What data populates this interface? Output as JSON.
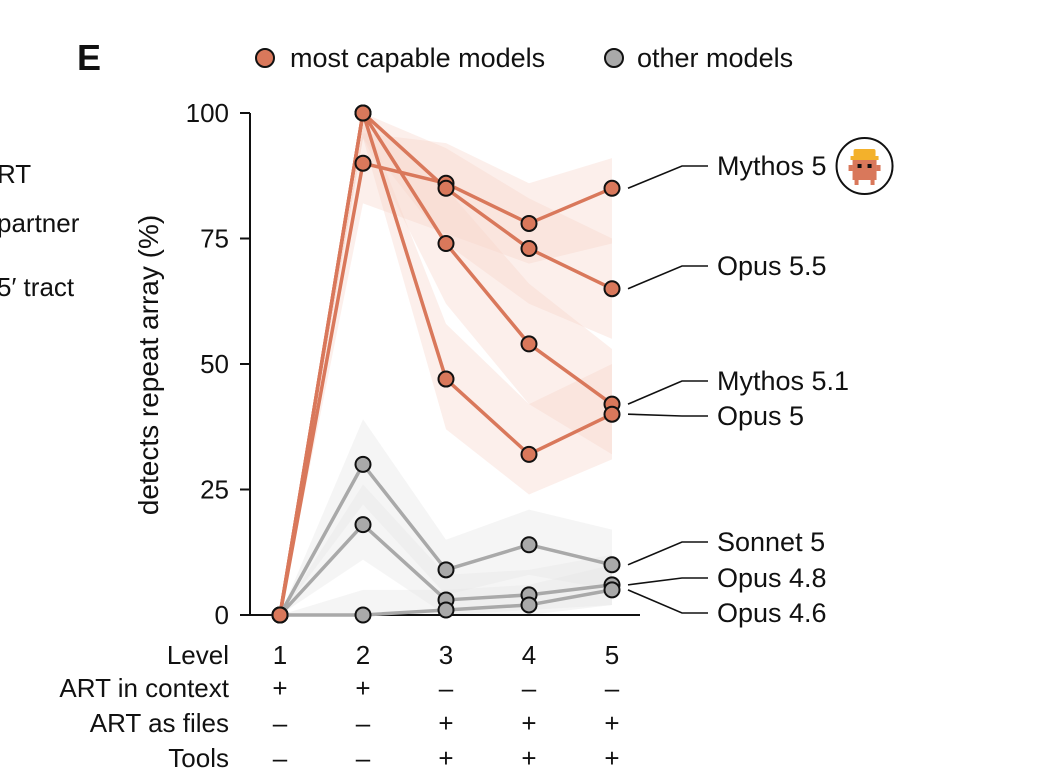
{
  "panel_label": "E",
  "partial_left_text": [
    "RT",
    "partner",
    "5′ tract"
  ],
  "colors": {
    "capable": "#D9785B",
    "capable_band": "#F6D5CB",
    "other": "#A9A9A9",
    "other_band": "#E4E4E4",
    "axis": "#111111"
  },
  "legend": [
    {
      "label": "most capable models",
      "color": "#D9785B"
    },
    {
      "label": "other models",
      "color": "#A9A9A9"
    }
  ],
  "chart_data": {
    "type": "line",
    "ylabel": "detects repeat array (%)",
    "ylim": [
      0,
      100
    ],
    "yticks": [
      0,
      25,
      50,
      75,
      100
    ],
    "x": [
      1,
      2,
      3,
      4,
      5
    ],
    "conditions": [
      {
        "label": "Level",
        "values": [
          "1",
          "2",
          "3",
          "4",
          "5"
        ]
      },
      {
        "label": "ART in context",
        "values": [
          "+",
          "+",
          "–",
          "–",
          "–"
        ]
      },
      {
        "label": "ART as files",
        "values": [
          "–",
          "–",
          "+",
          "+",
          "+"
        ]
      },
      {
        "label": "Tools",
        "values": [
          "–",
          "–",
          "+",
          "+",
          "+"
        ]
      }
    ],
    "series": [
      {
        "name": "Mythos 5",
        "group": "capable",
        "values": [
          0,
          90,
          86,
          78,
          85
        ],
        "band_low": [
          0,
          82,
          76,
          70,
          74
        ],
        "band_high": [
          0,
          96,
          94,
          86,
          91
        ],
        "icon": "mascot-icon"
      },
      {
        "name": "Opus 5.5",
        "group": "capable",
        "values": [
          0,
          100,
          85,
          73,
          65
        ],
        "band_low": [
          0,
          95,
          74,
          62,
          55
        ],
        "band_high": [
          0,
          100,
          93,
          83,
          75
        ]
      },
      {
        "name": "Mythos 5.1",
        "group": "capable",
        "values": [
          0,
          100,
          74,
          54,
          42
        ],
        "band_low": [
          0,
          95,
          62,
          42,
          32
        ],
        "band_high": [
          0,
          100,
          85,
          66,
          53
        ]
      },
      {
        "name": "Opus 5",
        "group": "capable",
        "values": [
          0,
          100,
          47,
          32,
          40
        ],
        "band_low": [
          0,
          95,
          37,
          24,
          31
        ],
        "band_high": [
          0,
          100,
          58,
          42,
          50
        ]
      },
      {
        "name": "Sonnet 5",
        "group": "other",
        "values": [
          0,
          30,
          9,
          14,
          10
        ],
        "band_low": [
          0,
          22,
          4,
          8,
          5
        ],
        "band_high": [
          0,
          39,
          15,
          21,
          17
        ]
      },
      {
        "name": "Opus 4.8",
        "group": "other",
        "values": [
          0,
          18,
          3,
          4,
          6
        ],
        "band_low": [
          0,
          11,
          0,
          1,
          2
        ],
        "band_high": [
          0,
          26,
          8,
          9,
          12
        ]
      },
      {
        "name": "Opus 4.6",
        "group": "other",
        "values": [
          0,
          0,
          1,
          2,
          5
        ],
        "band_low": [
          0,
          0,
          0,
          0,
          2
        ],
        "band_high": [
          0,
          5,
          5,
          6,
          10
        ]
      }
    ]
  }
}
